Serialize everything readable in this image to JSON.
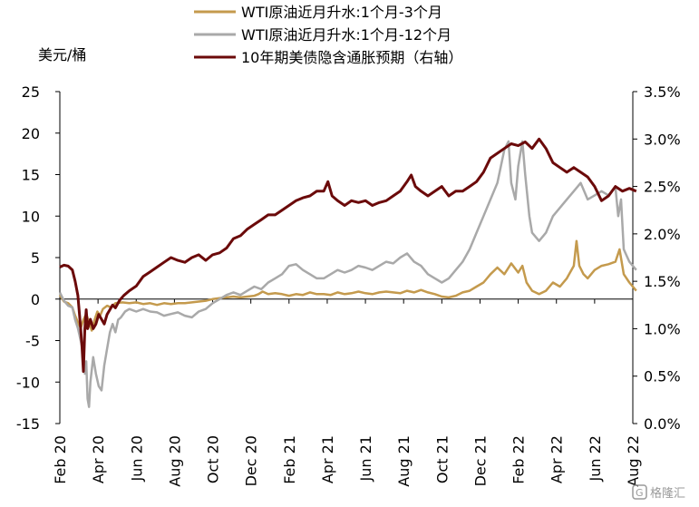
{
  "chart_data": {
    "type": "line",
    "unit_label": "美元/桶",
    "x_ticks": [
      "Feb 20",
      "Apr 20",
      "Jun 20",
      "Aug 20",
      "Oct 20",
      "Dec 20",
      "Feb 21",
      "Apr 21",
      "Jun 21",
      "Aug 21",
      "Oct 21",
      "Dec 21",
      "Feb 22",
      "Apr 22",
      "Jun 22",
      "Aug 22"
    ],
    "y_left": {
      "min": -15,
      "max": 25,
      "ticks": [
        "-15",
        "-10",
        "-5",
        "0",
        "5",
        "10",
        "15",
        "20",
        "25"
      ]
    },
    "y_right": {
      "min": 0.0,
      "max": 3.5,
      "ticks": [
        "0.0%",
        "0.5%",
        "1.0%",
        "1.5%",
        "2.0%",
        "2.5%",
        "3.0%",
        "3.5%"
      ]
    },
    "grid": false,
    "legend_position": "top-center",
    "series": [
      {
        "name": "WTI原油近月升水:1个月-3个月",
        "axis": "left",
        "color": "#C49A4D",
        "points": [
          [
            0,
            0.5
          ],
          [
            0.3,
            -0.3
          ],
          [
            0.6,
            -0.5
          ],
          [
            0.9,
            -1.0
          ],
          [
            1.1,
            -2.0
          ],
          [
            1.3,
            -2.8
          ],
          [
            1.5,
            -3.5
          ],
          [
            1.7,
            -2.5
          ],
          [
            1.9,
            -1.8
          ],
          [
            2.1,
            -2.8
          ],
          [
            2.3,
            -3.8
          ],
          [
            2.5,
            -2.5
          ],
          [
            2.7,
            -1.5
          ],
          [
            2.9,
            -2.0
          ],
          [
            3.1,
            -1.2
          ],
          [
            3.4,
            -0.8
          ],
          [
            3.7,
            -1.0
          ],
          [
            4.0,
            -0.5
          ],
          [
            4.5,
            -0.4
          ],
          [
            5,
            -0.5
          ],
          [
            5.5,
            -0.4
          ],
          [
            6,
            -0.6
          ],
          [
            6.5,
            -0.5
          ],
          [
            7,
            -0.7
          ],
          [
            7.5,
            -0.5
          ],
          [
            8,
            -0.6
          ],
          [
            8.5,
            -0.5
          ],
          [
            9,
            -0.5
          ],
          [
            9.5,
            -0.4
          ],
          [
            10,
            -0.3
          ],
          [
            10.5,
            -0.2
          ],
          [
            11,
            0
          ],
          [
            11.5,
            0.1
          ],
          [
            12,
            0.2
          ],
          [
            12.5,
            0.3
          ],
          [
            13,
            0.2
          ],
          [
            13.5,
            0.3
          ],
          [
            14,
            0.4
          ],
          [
            14.3,
            0.6
          ],
          [
            14.6,
            0.9
          ],
          [
            15,
            0.6
          ],
          [
            15.5,
            0.7
          ],
          [
            16,
            0.6
          ],
          [
            16.5,
            0.4
          ],
          [
            17,
            0.6
          ],
          [
            17.5,
            0.5
          ],
          [
            18,
            0.8
          ],
          [
            18.5,
            0.6
          ],
          [
            19,
            0.6
          ],
          [
            19.5,
            0.5
          ],
          [
            20,
            0.8
          ],
          [
            20.5,
            0.6
          ],
          [
            21,
            0.7
          ],
          [
            21.5,
            0.9
          ],
          [
            22,
            0.7
          ],
          [
            22.5,
            0.6
          ],
          [
            23,
            0.8
          ],
          [
            23.5,
            0.9
          ],
          [
            24,
            0.8
          ],
          [
            24.5,
            0.7
          ],
          [
            25,
            1.0
          ],
          [
            25.5,
            0.8
          ],
          [
            26,
            1.1
          ],
          [
            26.5,
            0.8
          ],
          [
            27,
            0.6
          ],
          [
            27.5,
            0.3
          ],
          [
            28,
            0.2
          ],
          [
            28.5,
            0.4
          ],
          [
            29,
            0.8
          ],
          [
            29.5,
            1.0
          ],
          [
            30,
            1.5
          ],
          [
            30.5,
            2.0
          ],
          [
            31,
            3.0
          ],
          [
            31.5,
            3.8
          ],
          [
            32,
            3.0
          ],
          [
            32.5,
            4.3
          ],
          [
            33,
            3.2
          ],
          [
            33.3,
            4.0
          ],
          [
            33.6,
            2.0
          ],
          [
            34,
            1.0
          ],
          [
            34.5,
            0.6
          ],
          [
            35,
            1.0
          ],
          [
            35.5,
            2.0
          ],
          [
            36,
            1.5
          ],
          [
            36.5,
            2.5
          ],
          [
            37,
            4.0
          ],
          [
            37.2,
            7.0
          ],
          [
            37.4,
            4.0
          ],
          [
            37.7,
            3.0
          ],
          [
            38,
            2.5
          ],
          [
            38.5,
            3.5
          ],
          [
            39,
            4.0
          ],
          [
            39.5,
            4.2
          ],
          [
            40,
            4.5
          ],
          [
            40.3,
            6.0
          ],
          [
            40.6,
            3.0
          ],
          [
            41,
            2.0
          ],
          [
            41.5,
            1.0
          ]
        ]
      },
      {
        "name": "WTI原油近月升水:1个月-12个月",
        "axis": "left",
        "color": "#A9A9A9",
        "points": [
          [
            0,
            0.8
          ],
          [
            0.3,
            -0.2
          ],
          [
            0.6,
            -0.8
          ],
          [
            0.9,
            -1.0
          ],
          [
            1.1,
            -2.5
          ],
          [
            1.3,
            -3.5
          ],
          [
            1.5,
            -5.0
          ],
          [
            1.7,
            -6.5
          ],
          [
            1.8,
            -9.0
          ],
          [
            1.9,
            -7.5
          ],
          [
            2.0,
            -12.0
          ],
          [
            2.1,
            -13.0
          ],
          [
            2.2,
            -10.0
          ],
          [
            2.4,
            -7.0
          ],
          [
            2.6,
            -9.0
          ],
          [
            2.8,
            -10.5
          ],
          [
            3.0,
            -11.0
          ],
          [
            3.2,
            -8.0
          ],
          [
            3.4,
            -6.0
          ],
          [
            3.6,
            -4.0
          ],
          [
            3.8,
            -3.0
          ],
          [
            4.0,
            -4.0
          ],
          [
            4.2,
            -2.5
          ],
          [
            4.4,
            -2.2
          ],
          [
            4.7,
            -1.5
          ],
          [
            5,
            -1.2
          ],
          [
            5.5,
            -1.5
          ],
          [
            6,
            -1.2
          ],
          [
            6.5,
            -1.5
          ],
          [
            7,
            -1.6
          ],
          [
            7.5,
            -2.0
          ],
          [
            8,
            -1.8
          ],
          [
            8.5,
            -1.6
          ],
          [
            9,
            -2.0
          ],
          [
            9.5,
            -2.2
          ],
          [
            10,
            -1.5
          ],
          [
            10.5,
            -1.2
          ],
          [
            11,
            -0.5
          ],
          [
            11.5,
            0.0
          ],
          [
            12,
            0.5
          ],
          [
            12.5,
            0.8
          ],
          [
            13,
            0.5
          ],
          [
            13.5,
            1.0
          ],
          [
            14,
            1.5
          ],
          [
            14.5,
            1.2
          ],
          [
            15,
            2.0
          ],
          [
            15.5,
            2.5
          ],
          [
            16,
            3.0
          ],
          [
            16.5,
            4.0
          ],
          [
            17,
            4.2
          ],
          [
            17.5,
            3.5
          ],
          [
            18,
            3.0
          ],
          [
            18.5,
            2.5
          ],
          [
            19,
            2.5
          ],
          [
            19.5,
            3.0
          ],
          [
            20,
            3.5
          ],
          [
            20.5,
            3.2
          ],
          [
            21,
            3.5
          ],
          [
            21.5,
            4.0
          ],
          [
            22,
            3.8
          ],
          [
            22.5,
            3.5
          ],
          [
            23,
            4.0
          ],
          [
            23.5,
            4.5
          ],
          [
            24,
            4.3
          ],
          [
            24.5,
            5.0
          ],
          [
            25,
            5.5
          ],
          [
            25.5,
            4.5
          ],
          [
            26,
            4.0
          ],
          [
            26.5,
            3.0
          ],
          [
            27,
            2.5
          ],
          [
            27.5,
            2.0
          ],
          [
            28,
            2.5
          ],
          [
            28.5,
            3.5
          ],
          [
            29,
            4.5
          ],
          [
            29.5,
            6.0
          ],
          [
            30,
            8.0
          ],
          [
            30.5,
            10.0
          ],
          [
            31,
            12.0
          ],
          [
            31.5,
            14.0
          ],
          [
            32,
            18.0
          ],
          [
            32.3,
            19.0
          ],
          [
            32.5,
            14.0
          ],
          [
            32.8,
            12.0
          ],
          [
            33.0,
            16.0
          ],
          [
            33.3,
            19.0
          ],
          [
            33.5,
            15.0
          ],
          [
            33.8,
            10.0
          ],
          [
            34,
            8.0
          ],
          [
            34.5,
            7.0
          ],
          [
            35,
            8.0
          ],
          [
            35.5,
            10.0
          ],
          [
            36,
            11.0
          ],
          [
            36.5,
            12.0
          ],
          [
            37,
            13.0
          ],
          [
            37.5,
            14.0
          ],
          [
            38,
            12.0
          ],
          [
            38.5,
            12.5
          ],
          [
            39,
            13.0
          ],
          [
            39.5,
            12.5
          ],
          [
            40,
            13.5
          ],
          [
            40.2,
            10.0
          ],
          [
            40.4,
            12.0
          ],
          [
            40.6,
            6.0
          ],
          [
            41,
            4.5
          ],
          [
            41.5,
            3.5
          ]
        ]
      },
      {
        "name": "10年期美债隐含通胀预期（右轴）",
        "axis": "right",
        "color": "#6B0A0A",
        "points": [
          [
            0,
            1.65
          ],
          [
            0.3,
            1.67
          ],
          [
            0.6,
            1.66
          ],
          [
            0.9,
            1.62
          ],
          [
            1.1,
            1.5
          ],
          [
            1.3,
            1.35
          ],
          [
            1.5,
            1.0
          ],
          [
            1.6,
            0.8
          ],
          [
            1.7,
            0.55
          ],
          [
            1.8,
            1.0
          ],
          [
            1.9,
            1.2
          ],
          [
            2.0,
            1.0
          ],
          [
            2.2,
            1.1
          ],
          [
            2.4,
            1.0
          ],
          [
            2.6,
            1.05
          ],
          [
            2.8,
            1.15
          ],
          [
            3.0,
            1.1
          ],
          [
            3.2,
            1.05
          ],
          [
            3.4,
            1.15
          ],
          [
            3.6,
            1.2
          ],
          [
            3.8,
            1.25
          ],
          [
            4.0,
            1.22
          ],
          [
            4.3,
            1.3
          ],
          [
            4.6,
            1.35
          ],
          [
            5,
            1.4
          ],
          [
            5.5,
            1.45
          ],
          [
            6,
            1.55
          ],
          [
            6.5,
            1.6
          ],
          [
            7,
            1.65
          ],
          [
            7.5,
            1.7
          ],
          [
            8,
            1.75
          ],
          [
            8.5,
            1.72
          ],
          [
            9,
            1.7
          ],
          [
            9.5,
            1.75
          ],
          [
            10,
            1.78
          ],
          [
            10.5,
            1.72
          ],
          [
            11,
            1.78
          ],
          [
            11.5,
            1.8
          ],
          [
            12,
            1.85
          ],
          [
            12.5,
            1.95
          ],
          [
            13,
            1.98
          ],
          [
            13.5,
            2.05
          ],
          [
            14,
            2.1
          ],
          [
            14.5,
            2.15
          ],
          [
            15,
            2.2
          ],
          [
            15.5,
            2.2
          ],
          [
            16,
            2.25
          ],
          [
            16.5,
            2.3
          ],
          [
            17,
            2.35
          ],
          [
            17.5,
            2.38
          ],
          [
            18,
            2.4
          ],
          [
            18.5,
            2.45
          ],
          [
            19,
            2.45
          ],
          [
            19.3,
            2.55
          ],
          [
            19.6,
            2.4
          ],
          [
            20,
            2.35
          ],
          [
            20.5,
            2.3
          ],
          [
            21,
            2.35
          ],
          [
            21.5,
            2.33
          ],
          [
            22,
            2.35
          ],
          [
            22.5,
            2.3
          ],
          [
            23,
            2.33
          ],
          [
            23.5,
            2.35
          ],
          [
            24,
            2.4
          ],
          [
            24.5,
            2.45
          ],
          [
            25,
            2.55
          ],
          [
            25.3,
            2.62
          ],
          [
            25.6,
            2.5
          ],
          [
            26,
            2.45
          ],
          [
            26.5,
            2.4
          ],
          [
            27,
            2.45
          ],
          [
            27.5,
            2.5
          ],
          [
            28,
            2.4
          ],
          [
            28.5,
            2.45
          ],
          [
            29,
            2.45
          ],
          [
            29.5,
            2.5
          ],
          [
            30,
            2.55
          ],
          [
            30.5,
            2.65
          ],
          [
            31,
            2.8
          ],
          [
            31.5,
            2.85
          ],
          [
            32,
            2.9
          ],
          [
            32.5,
            2.95
          ],
          [
            33,
            2.93
          ],
          [
            33.5,
            2.97
          ],
          [
            34,
            2.9
          ],
          [
            34.5,
            3.0
          ],
          [
            35,
            2.9
          ],
          [
            35.5,
            2.75
          ],
          [
            36,
            2.7
          ],
          [
            36.5,
            2.65
          ],
          [
            37,
            2.7
          ],
          [
            37.5,
            2.65
          ],
          [
            38,
            2.6
          ],
          [
            38.5,
            2.5
          ],
          [
            39,
            2.35
          ],
          [
            39.5,
            2.4
          ],
          [
            40,
            2.5
          ],
          [
            40.5,
            2.45
          ],
          [
            41,
            2.48
          ],
          [
            41.5,
            2.45
          ]
        ]
      }
    ]
  },
  "watermark": "格隆汇"
}
